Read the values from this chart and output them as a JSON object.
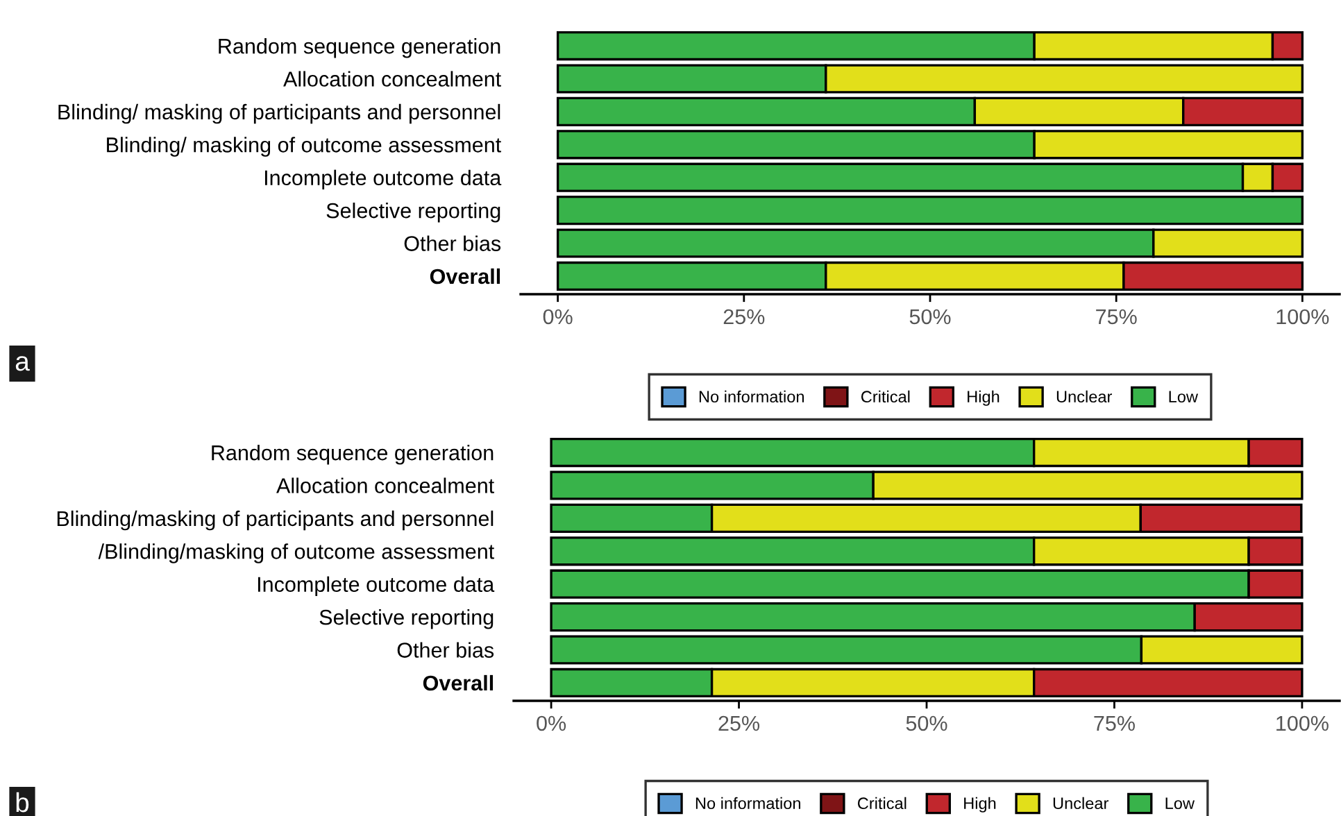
{
  "chart_data": [
    {
      "type": "bar",
      "orientation": "horizontal",
      "stacked": true,
      "legend": "bottom",
      "grid": false,
      "annotations": [
        "a"
      ],
      "categories": [
        "Random sequence generation",
        "Allocation concealment",
        "Blinding/ masking of participants and personnel",
        "Blinding/ masking of outcome assessment",
        "Incomplete outcome data",
        "Selective reporting",
        "Other bias",
        "Overall"
      ],
      "xlim": [
        -5,
        105
      ],
      "xticks": [
        {
          "value": 0,
          "label": "0%"
        },
        {
          "value": 25,
          "label": "25%"
        },
        {
          "value": 50,
          "label": "50%"
        },
        {
          "value": 75,
          "label": "75%"
        },
        {
          "value": 100,
          "label": "100%"
        }
      ],
      "series": [
        {
          "name": "Low",
          "color": "#38b34a",
          "values": [
            64,
            36,
            56,
            64,
            92,
            100,
            80,
            36
          ]
        },
        {
          "name": "Unclear",
          "color": "#e2df1a",
          "values": [
            32,
            64,
            28,
            36,
            4,
            0,
            20,
            40
          ]
        },
        {
          "name": "High",
          "color": "#c1272d",
          "values": [
            4,
            0,
            16,
            0,
            4,
            0,
            0,
            24
          ]
        },
        {
          "name": "Critical",
          "color": "#7f1416",
          "values": [
            0,
            0,
            0,
            0,
            0,
            0,
            0,
            0
          ]
        },
        {
          "name": "No information",
          "color": "#5b9bd5",
          "values": [
            0,
            0,
            0,
            0,
            0,
            0,
            0,
            0
          ]
        }
      ]
    },
    {
      "type": "bar",
      "orientation": "horizontal",
      "stacked": true,
      "legend": "bottom",
      "grid": false,
      "annotations": [
        "b"
      ],
      "categories": [
        "Random sequence generation",
        "Allocation concealment",
        "Blinding/masking of participants and personnel",
        "/Blinding/masking of outcome assessment",
        "Incomplete outcome data",
        "Selective reporting",
        "Other bias",
        "Overall"
      ],
      "xlim": [
        -5,
        105
      ],
      "xticks": [
        {
          "value": 0,
          "label": "0%"
        },
        {
          "value": 25,
          "label": "25%"
        },
        {
          "value": 50,
          "label": "50%"
        },
        {
          "value": 75,
          "label": "75%"
        },
        {
          "value": 100,
          "label": "100%"
        }
      ],
      "series": [
        {
          "name": "Low",
          "color": "#38b34a",
          "values": [
            64.3,
            42.9,
            21.4,
            64.3,
            92.9,
            85.7,
            78.6,
            21.4
          ]
        },
        {
          "name": "Unclear",
          "color": "#e2df1a",
          "values": [
            28.6,
            57.1,
            57.1,
            28.6,
            0,
            0,
            21.4,
            42.9
          ]
        },
        {
          "name": "High",
          "color": "#c1272d",
          "values": [
            7.1,
            0,
            21.4,
            7.1,
            7.1,
            14.3,
            0,
            35.7
          ]
        },
        {
          "name": "Critical",
          "color": "#7f1416",
          "values": [
            0,
            0,
            0,
            0,
            0,
            0,
            0,
            0
          ]
        },
        {
          "name": "No information",
          "color": "#5b9bd5",
          "values": [
            0,
            0,
            0,
            0,
            0,
            0,
            0,
            0
          ]
        }
      ]
    }
  ]
}
